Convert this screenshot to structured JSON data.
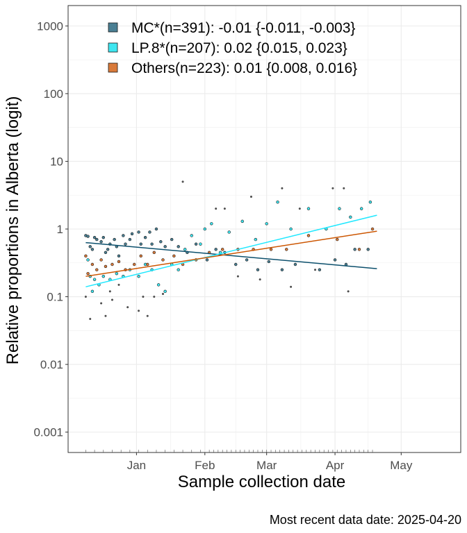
{
  "chart_data": {
    "type": "scatter",
    "title": "",
    "xlabel": "Sample collection date",
    "ylabel": "Relative proportions in Alberta (logit)",
    "caption": "Most recent data date: 2025-04-20",
    "y_scale": "log",
    "ylim": [
      0.0005,
      2000
    ],
    "xlim": [
      "2024-12-01",
      "2025-05-28"
    ],
    "x_ticks": [
      {
        "date": "2025-01-01",
        "label": "Jan"
      },
      {
        "date": "2025-02-01",
        "label": "Feb"
      },
      {
        "date": "2025-03-01",
        "label": "Mar"
      },
      {
        "date": "2025-04-01",
        "label": "Apr"
      },
      {
        "date": "2025-05-01",
        "label": "May"
      }
    ],
    "y_ticks": [
      {
        "value": 0.001,
        "label": "0.001"
      },
      {
        "value": 0.01,
        "label": "0.01"
      },
      {
        "value": 0.1,
        "label": "0.1"
      },
      {
        "value": 1,
        "label": "1"
      },
      {
        "value": 10,
        "label": "10"
      },
      {
        "value": 100,
        "label": "100"
      },
      {
        "value": 1000,
        "label": "1000"
      }
    ],
    "grid": true,
    "legend_position": "top-left",
    "series": [
      {
        "name": "MC*(n=391): -0.01 {-0.011, -0.003}",
        "color": "#0b4f6c",
        "fill": "#4a7f93",
        "fit": [
          {
            "x": "2024-12-09",
            "y": 0.63
          },
          {
            "x": "2025-04-20",
            "y": 0.26
          }
        ],
        "points": [
          {
            "x": "2024-12-09",
            "y": 0.8
          },
          {
            "x": "2024-12-10",
            "y": 0.78
          },
          {
            "x": "2024-12-11",
            "y": 0.55
          },
          {
            "x": "2024-12-12",
            "y": 0.5
          },
          {
            "x": "2024-12-13",
            "y": 0.75
          },
          {
            "x": "2024-12-14",
            "y": 0.7
          },
          {
            "x": "2024-12-16",
            "y": 0.65
          },
          {
            "x": "2024-12-17",
            "y": 0.75
          },
          {
            "x": "2024-12-18",
            "y": 0.45
          },
          {
            "x": "2024-12-19",
            "y": 0.5
          },
          {
            "x": "2024-12-20",
            "y": 0.6
          },
          {
            "x": "2024-12-22",
            "y": 0.7
          },
          {
            "x": "2024-12-23",
            "y": 0.55
          },
          {
            "x": "2024-12-24",
            "y": 0.4
          },
          {
            "x": "2024-12-26",
            "y": 0.8
          },
          {
            "x": "2024-12-27",
            "y": 0.6
          },
          {
            "x": "2024-12-29",
            "y": 0.7
          },
          {
            "x": "2024-12-30",
            "y": 0.85
          },
          {
            "x": "2025-01-02",
            "y": 0.9
          },
          {
            "x": "2025-01-03",
            "y": 0.6
          },
          {
            "x": "2025-01-05",
            "y": 0.75
          },
          {
            "x": "2025-01-07",
            "y": 0.9
          },
          {
            "x": "2025-01-08",
            "y": 0.6
          },
          {
            "x": "2025-01-10",
            "y": 1.0
          },
          {
            "x": "2025-01-12",
            "y": 0.65
          },
          {
            "x": "2025-01-14",
            "y": 0.55
          },
          {
            "x": "2025-01-17",
            "y": 0.7
          },
          {
            "x": "2025-01-20",
            "y": 0.55
          },
          {
            "x": "2025-01-24",
            "y": 0.45
          },
          {
            "x": "2025-01-28",
            "y": 0.6
          },
          {
            "x": "2025-02-02",
            "y": 0.35
          },
          {
            "x": "2025-02-06",
            "y": 0.5
          },
          {
            "x": "2025-02-10",
            "y": 0.45
          },
          {
            "x": "2025-02-15",
            "y": 0.3
          },
          {
            "x": "2025-02-20",
            "y": 0.35
          },
          {
            "x": "2025-02-25",
            "y": 0.25
          },
          {
            "x": "2025-03-02",
            "y": 0.33
          },
          {
            "x": "2025-03-08",
            "y": 0.25
          },
          {
            "x": "2025-03-14",
            "y": 0.3
          },
          {
            "x": "2025-03-25",
            "y": 0.25
          },
          {
            "x": "2025-04-01",
            "y": 0.35
          },
          {
            "x": "2025-04-06",
            "y": 0.3
          },
          {
            "x": "2025-04-10",
            "y": 0.5
          },
          {
            "x": "2025-04-16",
            "y": 0.5
          }
        ]
      },
      {
        "name": "LP.8*(n=207): 0.02 {0.015, 0.023}",
        "color": "#1fe8ff",
        "fill": "#3ee6f0",
        "fit": [
          {
            "x": "2024-12-09",
            "y": 0.14
          },
          {
            "x": "2025-04-20",
            "y": 1.6
          }
        ],
        "points": [
          {
            "x": "2024-12-10",
            "y": 0.35
          },
          {
            "x": "2024-12-11",
            "y": 0.2
          },
          {
            "x": "2024-12-12",
            "y": 0.12
          },
          {
            "x": "2024-12-13",
            "y": 0.18
          },
          {
            "x": "2024-12-15",
            "y": 0.15
          },
          {
            "x": "2024-12-17",
            "y": 0.2
          },
          {
            "x": "2024-12-20",
            "y": 0.18
          },
          {
            "x": "2024-12-23",
            "y": 0.22
          },
          {
            "x": "2024-12-26",
            "y": 0.2
          },
          {
            "x": "2024-12-29",
            "y": 0.25
          },
          {
            "x": "2025-01-02",
            "y": 0.2
          },
          {
            "x": "2025-01-05",
            "y": 0.3
          },
          {
            "x": "2025-01-08",
            "y": 0.25
          },
          {
            "x": "2025-01-11",
            "y": 0.15
          },
          {
            "x": "2025-01-14",
            "y": 0.12
          },
          {
            "x": "2025-01-17",
            "y": 0.3
          },
          {
            "x": "2025-01-20",
            "y": 0.25
          },
          {
            "x": "2025-01-23",
            "y": 0.5
          },
          {
            "x": "2025-01-26",
            "y": 0.8
          },
          {
            "x": "2025-01-30",
            "y": 0.6
          },
          {
            "x": "2025-02-01",
            "y": 1.0
          },
          {
            "x": "2025-02-04",
            "y": 1.2
          },
          {
            "x": "2025-02-08",
            "y": 0.45
          },
          {
            "x": "2025-02-12",
            "y": 0.9
          },
          {
            "x": "2025-02-18",
            "y": 1.3
          },
          {
            "x": "2025-02-24",
            "y": 0.7
          },
          {
            "x": "2025-03-01",
            "y": 1.2
          },
          {
            "x": "2025-03-06",
            "y": 2.5
          },
          {
            "x": "2025-03-12",
            "y": 1.0
          },
          {
            "x": "2025-03-20",
            "y": 2.0
          },
          {
            "x": "2025-03-28",
            "y": 1.0
          },
          {
            "x": "2025-04-03",
            "y": 2.0
          },
          {
            "x": "2025-04-08",
            "y": 1.5
          },
          {
            "x": "2025-04-13",
            "y": 2.0
          },
          {
            "x": "2025-04-17",
            "y": 2.5
          }
        ]
      },
      {
        "name": "Others(n=223): 0.01 {0.008, 0.016}",
        "color": "#cc5500",
        "fill": "#d97a3a",
        "fit": [
          {
            "x": "2024-12-09",
            "y": 0.2
          },
          {
            "x": "2025-04-20",
            "y": 0.93
          }
        ],
        "points": [
          {
            "x": "2024-12-09",
            "y": 0.4
          },
          {
            "x": "2024-12-10",
            "y": 0.22
          },
          {
            "x": "2024-12-12",
            "y": 0.3
          },
          {
            "x": "2024-12-14",
            "y": 0.25
          },
          {
            "x": "2024-12-16",
            "y": 0.35
          },
          {
            "x": "2024-12-18",
            "y": 0.28
          },
          {
            "x": "2024-12-21",
            "y": 0.3
          },
          {
            "x": "2024-12-24",
            "y": 0.33
          },
          {
            "x": "2024-12-27",
            "y": 0.25
          },
          {
            "x": "2024-12-31",
            "y": 0.3
          },
          {
            "x": "2025-01-03",
            "y": 0.4
          },
          {
            "x": "2025-01-06",
            "y": 0.3
          },
          {
            "x": "2025-01-09",
            "y": 0.45
          },
          {
            "x": "2025-01-13",
            "y": 0.35
          },
          {
            "x": "2025-01-18",
            "y": 0.4
          },
          {
            "x": "2025-01-22",
            "y": 0.3
          },
          {
            "x": "2025-01-28",
            "y": 0.35
          },
          {
            "x": "2025-02-03",
            "y": 0.45
          },
          {
            "x": "2025-02-09",
            "y": 0.5
          },
          {
            "x": "2025-02-16",
            "y": 0.5
          },
          {
            "x": "2025-02-23",
            "y": 0.5
          },
          {
            "x": "2025-03-03",
            "y": 0.5
          },
          {
            "x": "2025-03-10",
            "y": 0.5
          },
          {
            "x": "2025-03-20",
            "y": 0.8
          },
          {
            "x": "2025-04-02",
            "y": 0.7
          },
          {
            "x": "2025-04-12",
            "y": 0.5
          },
          {
            "x": "2025-04-18",
            "y": 1.0
          }
        ]
      }
    ],
    "unclassified_points": [
      {
        "x": "2024-12-09",
        "y": 0.1
      },
      {
        "x": "2024-12-11",
        "y": 0.047
      },
      {
        "x": "2024-12-16",
        "y": 0.08
      },
      {
        "x": "2024-12-18",
        "y": 0.052
      },
      {
        "x": "2024-12-20",
        "y": 0.12
      },
      {
        "x": "2024-12-21",
        "y": 0.09
      },
      {
        "x": "2024-12-24",
        "y": 0.15
      },
      {
        "x": "2024-12-28",
        "y": 0.07
      },
      {
        "x": "2025-01-02",
        "y": 0.062
      },
      {
        "x": "2025-01-04",
        "y": 0.1
      },
      {
        "x": "2025-01-06",
        "y": 0.052
      },
      {
        "x": "2025-01-09",
        "y": 0.1
      },
      {
        "x": "2025-01-13",
        "y": 0.11
      },
      {
        "x": "2025-01-22",
        "y": 5.0
      },
      {
        "x": "2025-02-06",
        "y": 2.0
      },
      {
        "x": "2025-02-10",
        "y": 2.0
      },
      {
        "x": "2025-02-16",
        "y": 0.2
      },
      {
        "x": "2025-02-22",
        "y": 3.0
      },
      {
        "x": "2025-02-26",
        "y": 0.18
      },
      {
        "x": "2025-03-08",
        "y": 4.0
      },
      {
        "x": "2025-03-12",
        "y": 0.14
      },
      {
        "x": "2025-03-16",
        "y": 2.0
      },
      {
        "x": "2025-03-23",
        "y": 0.25
      },
      {
        "x": "2025-03-31",
        "y": 4.0
      },
      {
        "x": "2025-04-05",
        "y": 4.0
      },
      {
        "x": "2025-04-07",
        "y": 0.12
      }
    ],
    "rug_ticks_x": [
      "2024-12-09",
      "2024-12-13",
      "2024-12-17",
      "2024-12-21",
      "2024-12-25",
      "2024-12-29",
      "2025-01-02",
      "2025-01-06",
      "2025-01-10",
      "2025-01-14",
      "2025-01-18",
      "2025-01-22",
      "2025-01-26",
      "2025-01-30",
      "2025-02-03",
      "2025-02-05",
      "2025-02-07",
      "2025-02-09",
      "2025-02-11",
      "2025-02-13",
      "2025-02-15",
      "2025-02-17",
      "2025-02-19",
      "2025-02-21",
      "2025-02-23",
      "2025-02-25",
      "2025-02-27",
      "2025-03-01",
      "2025-03-03",
      "2025-03-05",
      "2025-03-07",
      "2025-03-09",
      "2025-03-11",
      "2025-03-13",
      "2025-03-15",
      "2025-03-17",
      "2025-03-19",
      "2025-03-21",
      "2025-03-23",
      "2025-03-25",
      "2025-03-27",
      "2025-03-29",
      "2025-03-31",
      "2025-04-02",
      "2025-04-04",
      "2025-04-06",
      "2025-04-08",
      "2025-04-10",
      "2025-04-12",
      "2025-04-14",
      "2025-04-16",
      "2025-04-18"
    ]
  }
}
